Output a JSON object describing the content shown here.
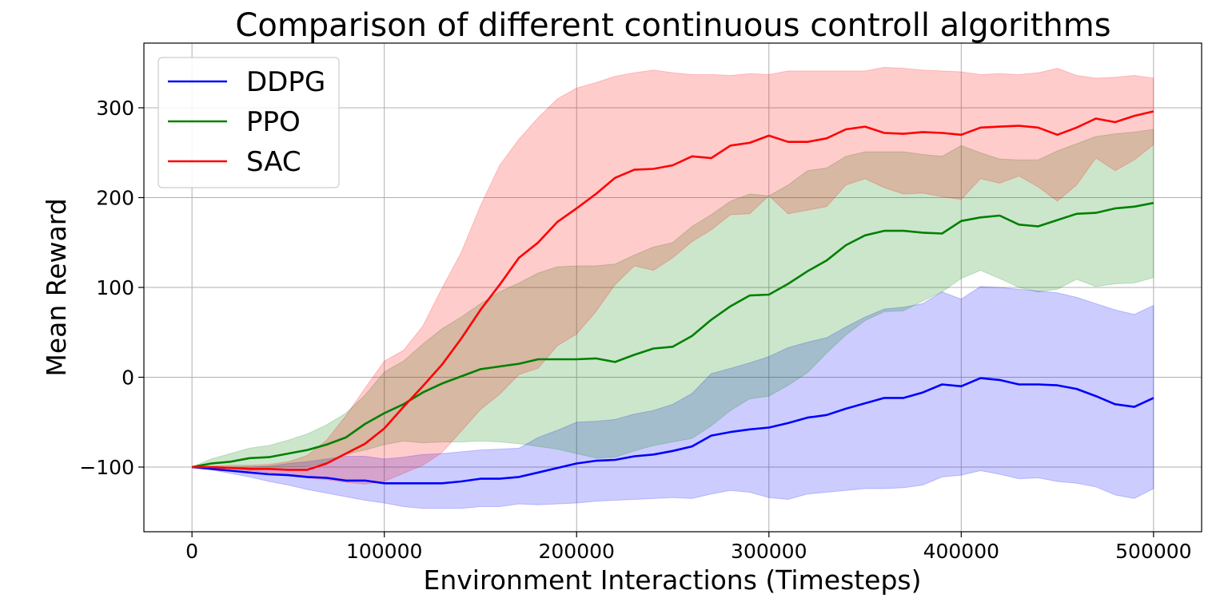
{
  "chart_data": {
    "type": "line",
    "title": "Comparison of different continuous controll algorithms",
    "xlabel": "Environment Interactions (Timesteps)",
    "ylabel": "Mean Reward",
    "xlim": [
      -25000,
      525000
    ],
    "ylim": [
      -172,
      372
    ],
    "x_ticks": [
      0,
      100000,
      200000,
      300000,
      400000,
      500000
    ],
    "x_tick_labels": [
      "0",
      "100000",
      "200000",
      "300000",
      "400000",
      "500000"
    ],
    "y_ticks": [
      -100,
      0,
      100,
      200,
      300
    ],
    "y_tick_labels": [
      "−100",
      "0",
      "100",
      "200",
      "300"
    ],
    "grid": true,
    "legend_position": "top-left",
    "x": [
      0,
      10000,
      20000,
      30000,
      40000,
      50000,
      60000,
      70000,
      80000,
      90000,
      100000,
      110000,
      120000,
      130000,
      140000,
      150000,
      160000,
      170000,
      180000,
      190000,
      200000,
      210000,
      220000,
      230000,
      240000,
      250000,
      260000,
      270000,
      280000,
      290000,
      300000,
      310000,
      320000,
      330000,
      340000,
      350000,
      360000,
      370000,
      380000,
      390000,
      400000,
      410000,
      420000,
      430000,
      440000,
      450000,
      460000,
      470000,
      480000,
      490000,
      500000
    ],
    "series": [
      {
        "name": "DDPG",
        "color": "#0000ff",
        "fill_color": "#0000ff",
        "values": [
          -100,
          -102,
          -104,
          -106,
          -108,
          -109,
          -111,
          -112,
          -115,
          -115,
          -118,
          -118,
          -118,
          -118,
          -116,
          -113,
          -113,
          -111,
          -106,
          -101,
          -96,
          -93,
          -92,
          -88,
          -86,
          -82,
          -77,
          -65,
          -61,
          -58,
          -56,
          -51,
          -45,
          -42,
          -35,
          -29,
          -23,
          -23,
          -17,
          -8,
          -10,
          -1,
          -3,
          -8,
          -8,
          -9,
          -13,
          -21,
          -30,
          -33,
          -23
        ],
        "upper": [
          -100,
          -101,
          -101,
          -100,
          -99,
          -96,
          -94,
          -91,
          -88,
          -88,
          -91,
          -89,
          -86,
          -85,
          -83,
          -81,
          -80,
          -79,
          -67,
          -59,
          -50,
          -49,
          -47,
          -41,
          -37,
          -30,
          -18,
          4,
          10,
          16,
          23,
          33,
          39,
          44,
          56,
          67,
          76,
          78,
          82,
          95,
          87,
          101,
          100,
          98,
          96,
          94,
          89,
          82,
          75,
          70,
          80
        ],
        "lower": [
          -100,
          -103,
          -107,
          -111,
          -116,
          -120,
          -125,
          -129,
          -133,
          -137,
          -140,
          -144,
          -146,
          -146,
          -146,
          -144,
          -144,
          -141,
          -142,
          -141,
          -140,
          -138,
          -137,
          -136,
          -135,
          -134,
          -135,
          -130,
          -126,
          -128,
          -134,
          -136,
          -130,
          -128,
          -126,
          -124,
          -124,
          -123,
          -120,
          -111,
          -109,
          -104,
          -108,
          -113,
          -112,
          -116,
          -118,
          -122,
          -131,
          -135,
          -124
        ]
      },
      {
        "name": "PPO",
        "color": "#008000",
        "fill_color": "#008000",
        "values": [
          -100,
          -96,
          -94,
          -90,
          -89,
          -85,
          -81,
          -75,
          -67,
          -52,
          -40,
          -30,
          -17,
          -7,
          1,
          9,
          12,
          15,
          20,
          20,
          20,
          21,
          17,
          25,
          32,
          34,
          46,
          64,
          79,
          91,
          92,
          104,
          118,
          130,
          147,
          158,
          163,
          163,
          161,
          160,
          174,
          178,
          180,
          170,
          168,
          175,
          182,
          183,
          188,
          190,
          194
        ],
        "upper": [
          -100,
          -91,
          -85,
          -79,
          -76,
          -70,
          -63,
          -53,
          -40,
          -20,
          6,
          18,
          37,
          54,
          67,
          82,
          95,
          105,
          116,
          123,
          124,
          124,
          126,
          136,
          145,
          150,
          168,
          181,
          196,
          204,
          202,
          214,
          230,
          233,
          246,
          251,
          251,
          251,
          248,
          246,
          258,
          250,
          243,
          242,
          242,
          252,
          260,
          268,
          271,
          273,
          276
        ],
        "lower": [
          -100,
          -100,
          -100,
          -100,
          -100,
          -100,
          -99,
          -95,
          -86,
          -81,
          -75,
          -71,
          -73,
          -72,
          -72,
          -71,
          -72,
          -74,
          -77,
          -80,
          -85,
          -90,
          -89,
          -82,
          -76,
          -72,
          -68,
          -54,
          -37,
          -24,
          -21,
          -9,
          5,
          27,
          47,
          63,
          73,
          74,
          85,
          95,
          110,
          119,
          110,
          100,
          95,
          98,
          109,
          101,
          104,
          105,
          111
        ]
      },
      {
        "name": "SAC",
        "color": "#ff0000",
        "fill_color": "#ff0000",
        "values": [
          -100,
          -100,
          -101,
          -102,
          -102,
          -103,
          -103,
          -96,
          -85,
          -74,
          -57,
          -33,
          -10,
          14,
          43,
          75,
          103,
          133,
          150,
          173,
          188,
          204,
          222,
          231,
          232,
          236,
          246,
          244,
          258,
          261,
          269,
          262,
          262,
          266,
          276,
          279,
          272,
          271,
          273,
          272,
          270,
          278,
          279,
          280,
          278,
          270,
          278,
          288,
          284,
          291,
          296
        ],
        "upper": [
          -100,
          -99,
          -98,
          -98,
          -97,
          -94,
          -87,
          -70,
          -43,
          -12,
          18,
          30,
          57,
          99,
          139,
          191,
          236,
          265,
          289,
          310,
          322,
          328,
          335,
          339,
          342,
          339,
          337,
          337,
          336,
          338,
          337,
          341,
          341,
          341,
          341,
          341,
          345,
          344,
          342,
          341,
          340,
          337,
          338,
          337,
          339,
          344,
          336,
          333,
          334,
          336,
          333
        ],
        "lower": [
          -100,
          -101,
          -102,
          -104,
          -106,
          -109,
          -112,
          -114,
          -117,
          -119,
          -116,
          -107,
          -98,
          -84,
          -60,
          -36,
          -19,
          3,
          10,
          35,
          48,
          73,
          103,
          124,
          119,
          133,
          151,
          164,
          181,
          182,
          202,
          182,
          186,
          190,
          214,
          221,
          211,
          204,
          205,
          201,
          198,
          221,
          216,
          224,
          212,
          196,
          214,
          244,
          230,
          242,
          259
        ]
      }
    ]
  }
}
